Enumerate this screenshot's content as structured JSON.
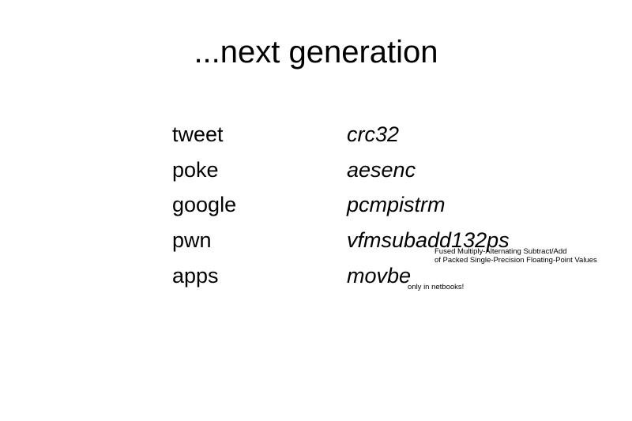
{
  "slide": {
    "title": "...next generation",
    "words": [
      "tweet",
      "poke",
      "google",
      "pwn",
      "apps"
    ],
    "instructions": [
      "crc32",
      "aesenc",
      "pcmpistrm",
      "vfmsubadd132ps",
      "movbe"
    ],
    "notes": {
      "fma_line1": "Fused Multiply-Alternating Subtract/Add",
      "fma_line2": "of Packed Single-Precision Floating-Point Values",
      "movbe": "only in netbooks!"
    }
  }
}
